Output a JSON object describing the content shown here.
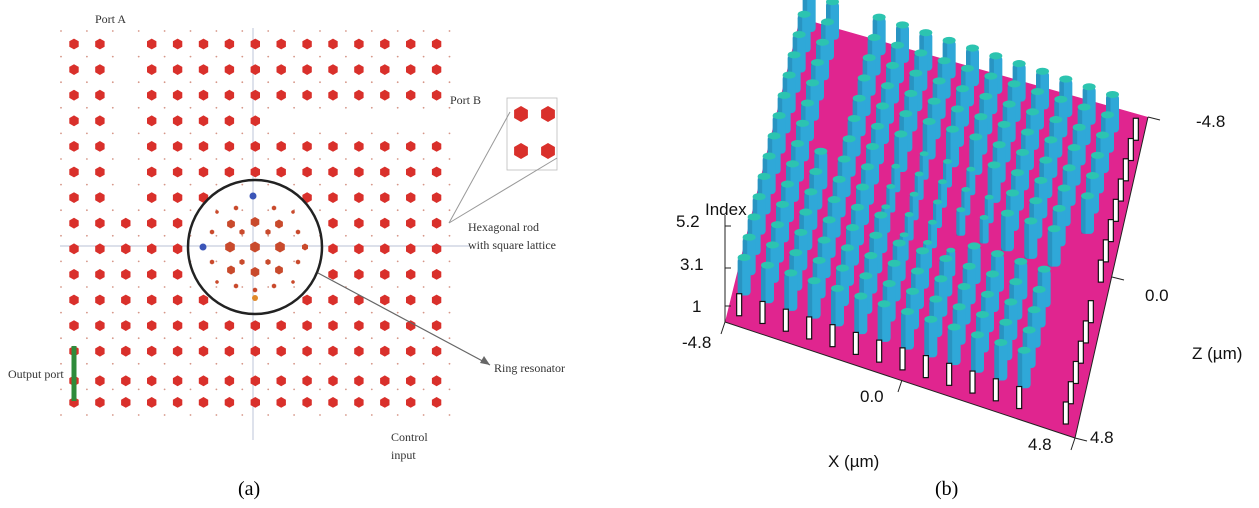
{
  "panel_a": {
    "labels": {
      "port_a": "Port A",
      "port_b": "Port B",
      "hexagonal_rod_line1": "Hexagonal rod",
      "hexagonal_rod_line2": "with square lattice",
      "ring_resonator": "Ring resonator",
      "output_port": "Output port",
      "control_input_line1": "Control",
      "control_input_line2": "input"
    },
    "caption": "(a)",
    "colors": {
      "rod": "#d9302b",
      "small_rod": "#c94a2c",
      "blue_rod": "#3b55b8",
      "orange_rod": "#e08a2a",
      "output_bar": "#2e8b3a",
      "ring": "#222222",
      "grid": "#8899bb"
    }
  },
  "panel_b": {
    "axis_labels": {
      "index": "Index",
      "x_axis": "X (µm)",
      "z_axis": "Z (µm)"
    },
    "index_ticks": [
      "5.2",
      "3.1",
      "1"
    ],
    "x_ticks": [
      "-4.8",
      "0.0",
      "4.8"
    ],
    "z_ticks": [
      "-4.8",
      "0.0",
      "4.8"
    ],
    "caption": "(b)",
    "colors": {
      "surface": "#e0258f",
      "rod_body": "#2fa8d8",
      "rod_top": "#2cc4b0",
      "rod_shadow": "#1c6f9a"
    }
  }
}
